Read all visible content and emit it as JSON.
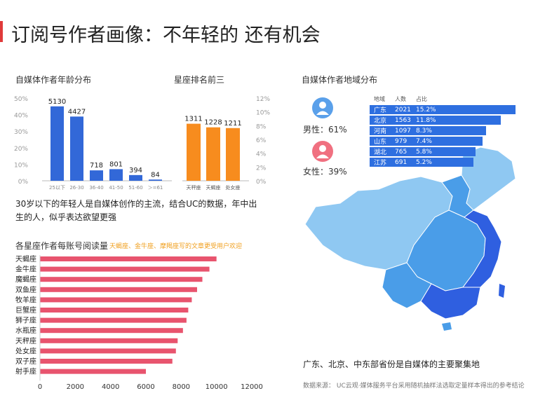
{
  "page_title": "订阅号作者画像：不年轻的 还有机会",
  "colors": {
    "accent": "#e03a3a",
    "age_bar": "#3268d8",
    "zodiac_bar": "#f78c1e",
    "hbar": "#e8546e",
    "region_bar": "#2e6fe0",
    "map_light": "#8fc8f2",
    "map_mid": "#4a9de8",
    "map_dark": "#2f5fe0",
    "male_icon": "#5aa0ea",
    "female_icon": "#f07080"
  },
  "age_section": {
    "title": "自媒体作者年龄分布",
    "description": "30岁以下的年轻人是自媒体创作的主流，结合UC的数据，年中出生的人，似乎表达欲望更强"
  },
  "zodiac_section": {
    "title": "星座排名前三"
  },
  "reading_section": {
    "title": "各星座作者每账号阅读量",
    "note": "天蝎座、金牛座、摩羯座写的文章更受用户欢迎"
  },
  "region_section": {
    "title": "自媒体作者地域分布",
    "male_label": "男性：61%",
    "female_label": "女性：39%",
    "table_headers": [
      "地域",
      "人数",
      "占比"
    ],
    "caption": "广东、北京、中东部省份是自媒体的主要聚集地"
  },
  "source_note": "数据来源： UC云观·媒体服务平台采用随机抽样法选取定量样本得出的参考结论",
  "chart_data": [
    {
      "type": "bar",
      "categories": [
        "25以下",
        "26-30",
        "36-40",
        "41-50",
        "51-60",
        "＞=61"
      ],
      "values": [
        5130,
        4427,
        718,
        801,
        394,
        84
      ],
      "yticks": [
        "0%",
        "10%",
        "20%",
        "30%",
        "40%",
        "50%"
      ],
      "ylim": [
        0,
        5700
      ],
      "grid": false
    },
    {
      "type": "bar",
      "categories": [
        "天秤座",
        "天蝎座",
        "处女座"
      ],
      "values": [
        1311,
        1228,
        1211
      ],
      "yticks": [
        "0%",
        "2%",
        "4%",
        "6%",
        "8%",
        "10%",
        "12%"
      ],
      "ylim": [
        0,
        1900
      ],
      "grid": false
    },
    {
      "type": "bar",
      "orientation": "horizontal",
      "categories": [
        "天蝎座",
        "金牛座",
        "魔蝎座",
        "双鱼座",
        "牧羊座",
        "巨蟹座",
        "狮子座",
        "水瓶座",
        "天秤座",
        "处女座",
        "双子座",
        "射手座"
      ],
      "values": [
        10000,
        9600,
        9200,
        8900,
        8600,
        8400,
        8300,
        8100,
        7800,
        7700,
        7500,
        6000
      ],
      "xticks": [
        0,
        2000,
        4000,
        6000,
        8000,
        10000,
        12000
      ],
      "xlim": [
        0,
        12000
      ]
    },
    {
      "type": "table",
      "columns": [
        "地域",
        "人数",
        "占比"
      ],
      "rows": [
        {
          "region": "广东",
          "count": 2021,
          "share": "15.2%"
        },
        {
          "region": "北京",
          "count": 1563,
          "share": "11.8%"
        },
        {
          "region": "河南",
          "count": 1097,
          "share": "8.3%"
        },
        {
          "region": "山东",
          "count": 979,
          "share": "7.4%"
        },
        {
          "region": "湖北",
          "count": 765,
          "share": "5.8%"
        },
        {
          "region": "江苏",
          "count": 691,
          "share": "5.2%"
        }
      ]
    }
  ]
}
